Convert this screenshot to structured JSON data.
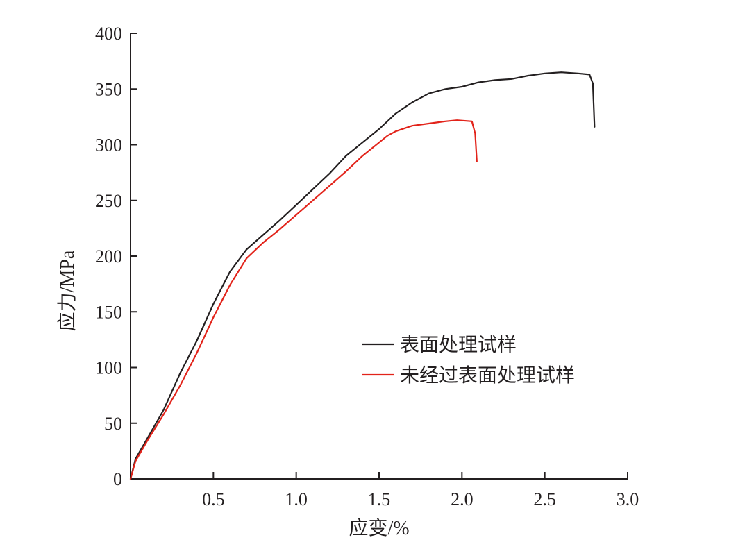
{
  "chart_data": {
    "type": "line",
    "xlabel": "应变/%",
    "ylabel": "应力/MPa",
    "xlim": [
      0,
      3.0
    ],
    "ylim": [
      0,
      400
    ],
    "x_ticks": [
      0.5,
      1.0,
      1.5,
      2.0,
      2.5,
      3.0
    ],
    "x_tick_labels": [
      "0.5",
      "1.0",
      "1.5",
      "2.0",
      "2.5",
      "3.0"
    ],
    "y_ticks": [
      0,
      50,
      100,
      150,
      200,
      250,
      300,
      350,
      400
    ],
    "y_tick_labels": [
      "0",
      "50",
      "100",
      "150",
      "200",
      "250",
      "300",
      "350",
      "400"
    ],
    "grid": false,
    "legend_position": "center-right",
    "series": [
      {
        "name": "表面处理试样",
        "color": "#231f20",
        "points": [
          [
            0,
            0
          ],
          [
            0.03,
            18
          ],
          [
            0.1,
            36
          ],
          [
            0.2,
            62
          ],
          [
            0.3,
            95
          ],
          [
            0.4,
            124
          ],
          [
            0.5,
            157
          ],
          [
            0.6,
            186
          ],
          [
            0.7,
            206
          ],
          [
            0.8,
            219
          ],
          [
            0.9,
            232
          ],
          [
            1.0,
            246
          ],
          [
            1.1,
            260
          ],
          [
            1.2,
            274
          ],
          [
            1.3,
            290
          ],
          [
            1.4,
            302
          ],
          [
            1.5,
            314
          ],
          [
            1.6,
            328
          ],
          [
            1.7,
            338
          ],
          [
            1.8,
            346
          ],
          [
            1.9,
            350
          ],
          [
            2.0,
            352
          ],
          [
            2.1,
            356
          ],
          [
            2.2,
            358
          ],
          [
            2.3,
            359
          ],
          [
            2.4,
            362
          ],
          [
            2.5,
            364
          ],
          [
            2.6,
            365
          ],
          [
            2.7,
            364
          ],
          [
            2.77,
            363
          ],
          [
            2.79,
            355
          ],
          [
            2.8,
            316
          ]
        ]
      },
      {
        "name": "未经过表面处理试样",
        "color": "#e2231a",
        "points": [
          [
            0,
            0
          ],
          [
            0.03,
            16
          ],
          [
            0.1,
            34
          ],
          [
            0.2,
            58
          ],
          [
            0.3,
            84
          ],
          [
            0.4,
            113
          ],
          [
            0.5,
            145
          ],
          [
            0.6,
            174
          ],
          [
            0.7,
            198
          ],
          [
            0.8,
            212
          ],
          [
            0.9,
            224
          ],
          [
            1.0,
            237
          ],
          [
            1.1,
            250
          ],
          [
            1.2,
            263
          ],
          [
            1.3,
            276
          ],
          [
            1.4,
            290
          ],
          [
            1.5,
            302
          ],
          [
            1.55,
            308
          ],
          [
            1.6,
            312
          ],
          [
            1.7,
            317
          ],
          [
            1.8,
            319
          ],
          [
            1.9,
            321
          ],
          [
            1.97,
            322
          ],
          [
            2.06,
            321
          ],
          [
            2.08,
            310
          ],
          [
            2.09,
            285
          ]
        ]
      }
    ]
  }
}
